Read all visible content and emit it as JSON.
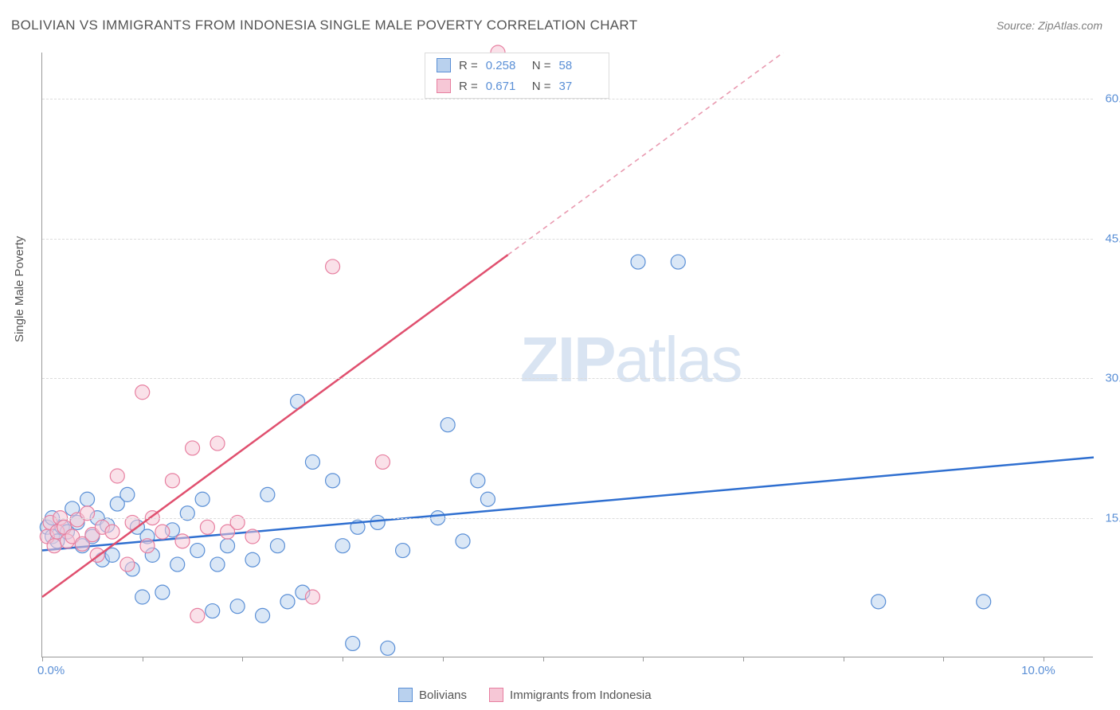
{
  "title": "BOLIVIAN VS IMMIGRANTS FROM INDONESIA SINGLE MALE POVERTY CORRELATION CHART",
  "source": "Source: ZipAtlas.com",
  "ylabel": "Single Male Poverty",
  "watermark_a": "ZIP",
  "watermark_b": "atlas",
  "chart": {
    "type": "scatter",
    "xlim": [
      0,
      10.5
    ],
    "ylim": [
      0,
      65
    ],
    "xtick_positions": [
      0,
      1,
      2,
      3,
      4,
      5,
      6,
      7,
      8,
      9,
      10
    ],
    "xtick_labels": {
      "0": "0.0%",
      "10": "10.0%"
    },
    "ytick_positions": [
      15,
      30,
      45,
      60
    ],
    "ytick_labels": [
      "15.0%",
      "30.0%",
      "45.0%",
      "60.0%"
    ],
    "grid_color": "#dcdcdc",
    "axis_color": "#999999",
    "background_color": "#ffffff",
    "label_color": "#5a8fd6",
    "axis_label_color": "#555555",
    "label_fontsize": 15,
    "title_fontsize": 17,
    "marker_radius": 9,
    "marker_stroke_width": 1.2,
    "marker_fill_opacity": 0.18,
    "trend_line_width": 2.5
  },
  "series": [
    {
      "name": "Bolivians",
      "color_stroke": "#5a8fd6",
      "color_fill": "#b9d1ee",
      "R": "0.258",
      "N": "58",
      "trend": {
        "x1": 0,
        "y1": 11.5,
        "x2": 10.5,
        "y2": 21.5,
        "dash_from_x": null
      },
      "points": [
        [
          0.05,
          14
        ],
        [
          0.1,
          13
        ],
        [
          0.1,
          15
        ],
        [
          0.15,
          12.5
        ],
        [
          0.2,
          14
        ],
        [
          0.25,
          13.5
        ],
        [
          0.3,
          16
        ],
        [
          0.35,
          14.5
        ],
        [
          0.4,
          12
        ],
        [
          0.45,
          17
        ],
        [
          0.5,
          13
        ],
        [
          0.55,
          15
        ],
        [
          0.6,
          10.5
        ],
        [
          0.65,
          14.2
        ],
        [
          0.7,
          11
        ],
        [
          0.75,
          16.5
        ],
        [
          0.85,
          17.5
        ],
        [
          0.9,
          9.5
        ],
        [
          0.95,
          14
        ],
        [
          1.0,
          6.5
        ],
        [
          1.05,
          13
        ],
        [
          1.1,
          11
        ],
        [
          1.2,
          7
        ],
        [
          1.3,
          13.7
        ],
        [
          1.35,
          10
        ],
        [
          1.45,
          15.5
        ],
        [
          1.55,
          11.5
        ],
        [
          1.6,
          17
        ],
        [
          1.7,
          5
        ],
        [
          1.75,
          10
        ],
        [
          1.85,
          12
        ],
        [
          1.95,
          5.5
        ],
        [
          2.1,
          10.5
        ],
        [
          2.2,
          4.5
        ],
        [
          2.25,
          17.5
        ],
        [
          2.35,
          12
        ],
        [
          2.45,
          6
        ],
        [
          2.55,
          27.5
        ],
        [
          2.6,
          7
        ],
        [
          2.7,
          21
        ],
        [
          2.9,
          19
        ],
        [
          3.0,
          12
        ],
        [
          3.1,
          1.5
        ],
        [
          3.15,
          14
        ],
        [
          3.35,
          14.5
        ],
        [
          3.45,
          1
        ],
        [
          3.6,
          11.5
        ],
        [
          3.95,
          15
        ],
        [
          4.05,
          25
        ],
        [
          4.2,
          12.5
        ],
        [
          4.35,
          19
        ],
        [
          4.45,
          17
        ],
        [
          5.95,
          42.5
        ],
        [
          6.35,
          42.5
        ],
        [
          8.35,
          6
        ],
        [
          9.4,
          6
        ]
      ]
    },
    {
      "name": "Immigigrants_placeholder",
      "legend_label": "Immigrants from Indonesia",
      "color_stroke": "#e77fa0",
      "color_fill": "#f6c7d6",
      "R": "0.671",
      "N": "37",
      "trend": {
        "x1": 0,
        "y1": 6.5,
        "x2": 7.4,
        "y2": 65,
        "dash_from_x": 4.65
      },
      "points": [
        [
          0.05,
          13
        ],
        [
          0.08,
          14.5
        ],
        [
          0.12,
          12
        ],
        [
          0.15,
          13.5
        ],
        [
          0.18,
          15
        ],
        [
          0.22,
          14
        ],
        [
          0.25,
          12.5
        ],
        [
          0.3,
          13
        ],
        [
          0.35,
          14.8
        ],
        [
          0.4,
          12.2
        ],
        [
          0.45,
          15.5
        ],
        [
          0.5,
          13.2
        ],
        [
          0.55,
          11
        ],
        [
          0.6,
          14
        ],
        [
          0.7,
          13.5
        ],
        [
          0.75,
          19.5
        ],
        [
          0.85,
          10
        ],
        [
          0.9,
          14.5
        ],
        [
          1.0,
          28.5
        ],
        [
          1.05,
          12
        ],
        [
          1.1,
          15
        ],
        [
          1.2,
          13.5
        ],
        [
          1.3,
          19
        ],
        [
          1.4,
          12.5
        ],
        [
          1.5,
          22.5
        ],
        [
          1.55,
          4.5
        ],
        [
          1.65,
          14
        ],
        [
          1.75,
          23
        ],
        [
          1.85,
          13.5
        ],
        [
          1.95,
          14.5
        ],
        [
          2.1,
          13
        ],
        [
          2.7,
          6.5
        ],
        [
          2.9,
          42
        ],
        [
          3.4,
          21
        ],
        [
          4.55,
          65
        ]
      ]
    }
  ],
  "stats_box": {
    "rows": [
      {
        "swatch_fill": "#b9d1ee",
        "swatch_border": "#5a8fd6",
        "r_label": "R =",
        "r_value": "0.258",
        "n_label": "N =",
        "n_value": "58"
      },
      {
        "swatch_fill": "#f6c7d6",
        "swatch_border": "#e77fa0",
        "r_label": "R =",
        "r_value": "0.671",
        "n_label": "N =",
        "n_value": "37"
      }
    ]
  },
  "bottom_legend": [
    {
      "swatch_fill": "#b9d1ee",
      "swatch_border": "#5a8fd6",
      "label": "Bolivians"
    },
    {
      "swatch_fill": "#f6c7d6",
      "swatch_border": "#e77fa0",
      "label": "Immigrants from Indonesia"
    }
  ]
}
